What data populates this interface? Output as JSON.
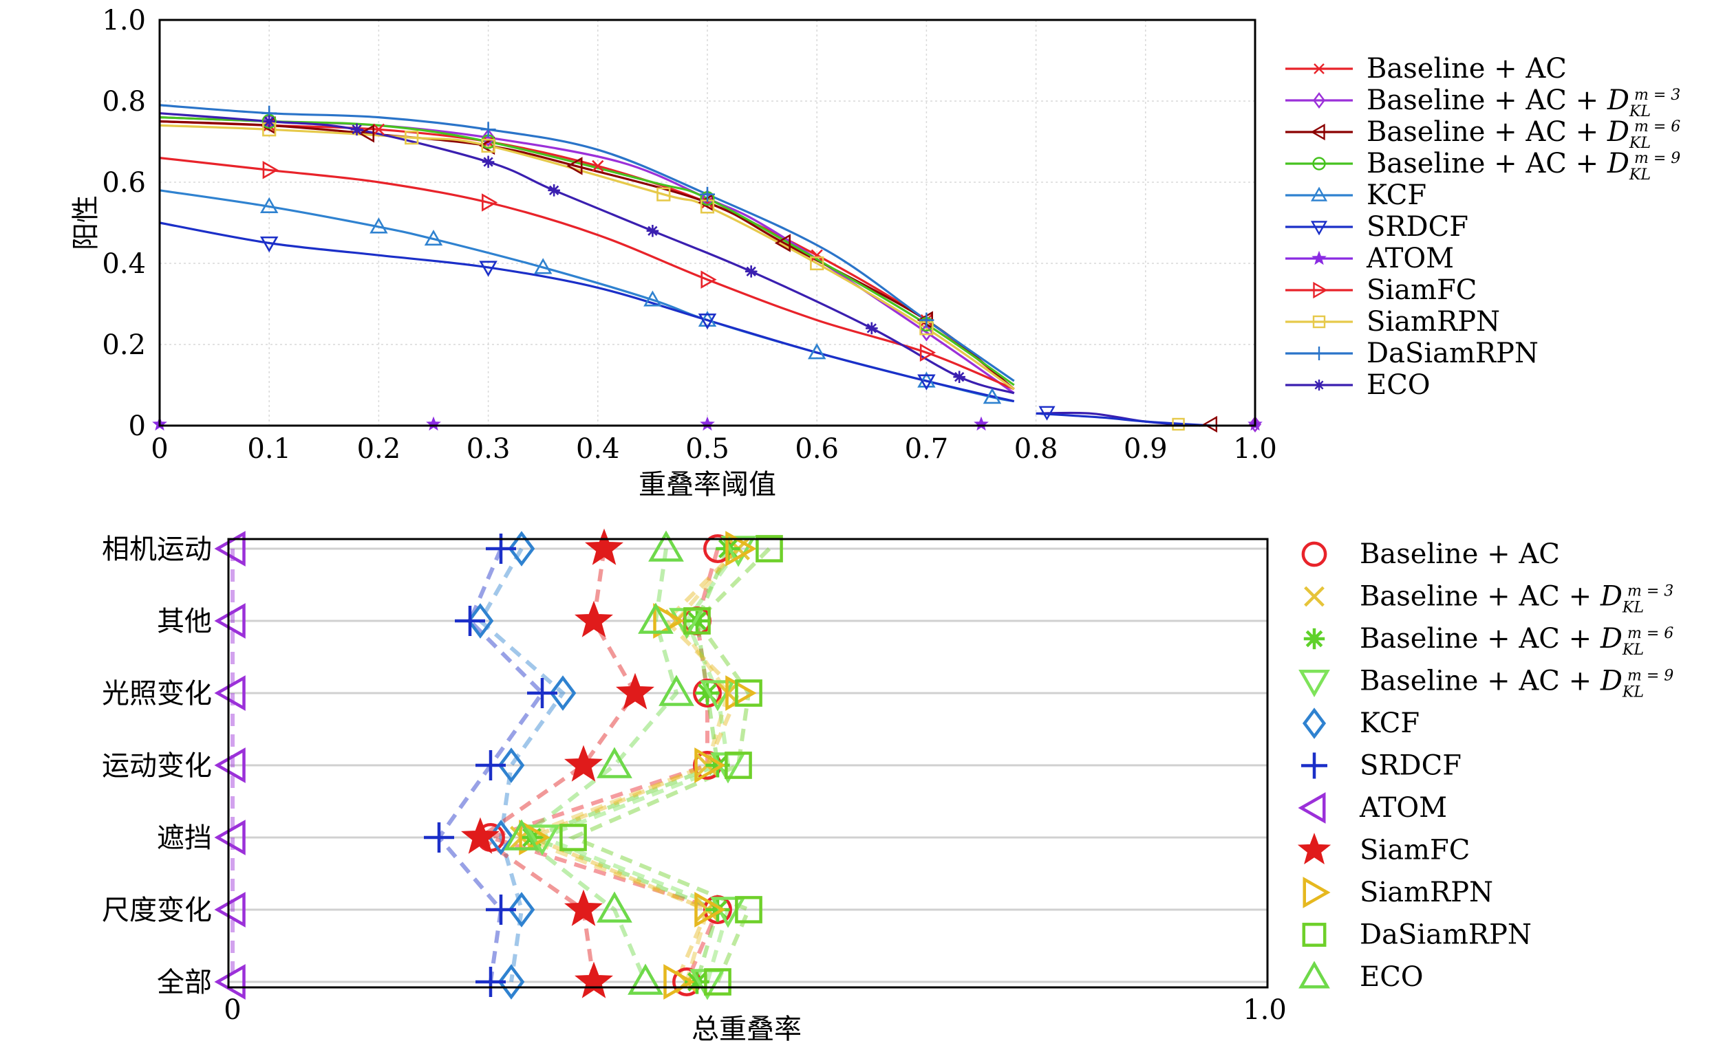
{
  "chart_data": [
    {
      "type": "line",
      "xlabel": "重叠率阈值",
      "ylabel": "阳性",
      "xlim": [
        0,
        1.0
      ],
      "ylim": [
        0,
        1.0
      ],
      "xticks": [
        "0",
        "0.1",
        "0.2",
        "0.3",
        "0.4",
        "0.5",
        "0.6",
        "0.7",
        "0.8",
        "0.9",
        "1.0"
      ],
      "yticks": [
        "0",
        "0.2",
        "0.4",
        "0.6",
        "0.8",
        "1.0"
      ],
      "grid": true,
      "legend_position": "right",
      "series": [
        {
          "name": "Baseline + AC",
          "sub": "",
          "color": "#e8232a",
          "marker": "x",
          "points": [
            [
              0,
              0.75
            ],
            [
              0.1,
              0.74
            ],
            [
              0.2,
              0.73
            ],
            [
              0.3,
              0.7
            ],
            [
              0.4,
              0.64
            ],
            [
              0.5,
              0.55
            ],
            [
              0.6,
              0.42
            ],
            [
              0.7,
              0.26
            ],
            [
              0.78,
              0.09
            ]
          ]
        },
        {
          "name": "Baseline + AC + ",
          "sub": "m = 3",
          "color": "#9b30d9",
          "marker": "diamond",
          "points": [
            [
              0,
              0.76
            ],
            [
              0.1,
              0.75
            ],
            [
              0.2,
              0.74
            ],
            [
              0.3,
              0.71
            ],
            [
              0.42,
              0.65
            ],
            [
              0.5,
              0.56
            ],
            [
              0.56,
              0.48
            ],
            [
              0.7,
              0.23
            ],
            [
              0.78,
              0.08
            ]
          ]
        },
        {
          "name": "Baseline + AC + ",
          "sub": "m = 6",
          "color": "#8b0000",
          "marker": "triangle-left",
          "points": [
            [
              0,
              0.75
            ],
            [
              0.1,
              0.74
            ],
            [
              0.19,
              0.72
            ],
            [
              0.3,
              0.69
            ],
            [
              0.38,
              0.64
            ],
            [
              0.5,
              0.55
            ],
            [
              0.57,
              0.45
            ],
            [
              0.7,
              0.26
            ],
            [
              0.78,
              0.09
            ]
          ]
        },
        {
          "name": "Baseline + AC + ",
          "sub": "m = 9",
          "color": "#46c21f",
          "marker": "circle",
          "points": [
            [
              0,
              0.76
            ],
            [
              0.1,
              0.75
            ],
            [
              0.2,
              0.74
            ],
            [
              0.3,
              0.7
            ],
            [
              0.45,
              0.6
            ],
            [
              0.5,
              0.56
            ],
            [
              0.6,
              0.41
            ],
            [
              0.7,
              0.25
            ],
            [
              0.78,
              0.1
            ]
          ]
        },
        {
          "name": "KCF",
          "sub": "",
          "color": "#2f82d0",
          "marker": "triangle-up",
          "points": [
            [
              0,
              0.58
            ],
            [
              0.1,
              0.54
            ],
            [
              0.2,
              0.49
            ],
            [
              0.25,
              0.46
            ],
            [
              0.35,
              0.39
            ],
            [
              0.45,
              0.31
            ],
            [
              0.5,
              0.26
            ],
            [
              0.6,
              0.18
            ],
            [
              0.7,
              0.11
            ],
            [
              0.76,
              0.07
            ],
            [
              0.78,
              0.06
            ]
          ]
        },
        {
          "name": "SRDCF",
          "sub": "",
          "color": "#1b2fc8",
          "marker": "triangle-down",
          "points": [
            [
              0,
              0.5
            ],
            [
              0.1,
              0.45
            ],
            [
              0.2,
              0.42
            ],
            [
              0.3,
              0.39
            ],
            [
              0.4,
              0.34
            ],
            [
              0.5,
              0.26
            ],
            [
              0.6,
              0.18
            ],
            [
              0.7,
              0.11
            ],
            [
              0.78,
              0.06
            ]
          ]
        },
        {
          "name": "ATOM",
          "sub": "",
          "color": "#8a2be2",
          "marker": "star",
          "points": []
        },
        {
          "name": "SiamFC",
          "sub": "",
          "color": "#e8232a",
          "marker": "triangle-right",
          "points": [
            [
              0,
              0.66
            ],
            [
              0.1,
              0.63
            ],
            [
              0.2,
              0.6
            ],
            [
              0.3,
              0.55
            ],
            [
              0.4,
              0.47
            ],
            [
              0.5,
              0.36
            ],
            [
              0.6,
              0.26
            ],
            [
              0.7,
              0.18
            ],
            [
              0.78,
              0.09
            ]
          ]
        },
        {
          "name": "SiamRPN",
          "sub": "",
          "color": "#e6c94a",
          "marker": "square",
          "points": [
            [
              0,
              0.74
            ],
            [
              0.1,
              0.73
            ],
            [
              0.23,
              0.71
            ],
            [
              0.3,
              0.69
            ],
            [
              0.46,
              0.57
            ],
            [
              0.5,
              0.54
            ],
            [
              0.6,
              0.4
            ],
            [
              0.7,
              0.24
            ],
            [
              0.78,
              0.09
            ]
          ]
        },
        {
          "name": "DaSiamRPN",
          "sub": "",
          "color": "#2a74c9",
          "marker": "plus",
          "points": [
            [
              0,
              0.79
            ],
            [
              0.1,
              0.77
            ],
            [
              0.2,
              0.76
            ],
            [
              0.3,
              0.73
            ],
            [
              0.4,
              0.68
            ],
            [
              0.5,
              0.57
            ],
            [
              0.61,
              0.43
            ],
            [
              0.7,
              0.26
            ],
            [
              0.78,
              0.11
            ]
          ]
        },
        {
          "name": "ECO",
          "sub": "",
          "color": "#3a1fb0",
          "marker": "asterisk",
          "points": [
            [
              0,
              0.77
            ],
            [
              0.1,
              0.75
            ],
            [
              0.18,
              0.73
            ],
            [
              0.3,
              0.65
            ],
            [
              0.36,
              0.58
            ],
            [
              0.45,
              0.48
            ],
            [
              0.54,
              0.38
            ],
            [
              0.65,
              0.24
            ],
            [
              0.73,
              0.12
            ],
            [
              0.78,
              0.08
            ]
          ]
        }
      ],
      "tail_markers": [
        {
          "series": 6,
          "points": [
            [
              0,
              0
            ],
            [
              0.25,
              0
            ],
            [
              0.5,
              0
            ],
            [
              0.75,
              0
            ],
            [
              1.0,
              0
            ]
          ]
        },
        {
          "series": 1,
          "points": [
            [
              1.0,
              0
            ]
          ]
        },
        {
          "series": 2,
          "points": [
            [
              0.96,
              0
            ]
          ]
        },
        {
          "series": 8,
          "points": [
            [
              0.93,
              0
            ]
          ]
        },
        {
          "series": 5,
          "points": [
            [
              0.81,
              0.03
            ]
          ]
        }
      ],
      "tail_lines": [
        {
          "color": "#3a1fb0",
          "points": [
            [
              0.8,
              0.03
            ],
            [
              0.85,
              0.03
            ],
            [
              0.9,
              0.01
            ],
            [
              0.95,
              0.0
            ]
          ]
        },
        {
          "color": "#1b2fc8",
          "points": [
            [
              0.8,
              0.03
            ],
            [
              0.86,
              0.02
            ],
            [
              0.9,
              0.01
            ],
            [
              0.96,
              0.0
            ]
          ]
        }
      ]
    },
    {
      "type": "scatter",
      "xlabel": "总重叠率",
      "xlim": [
        0,
        1.0
      ],
      "xticks": [
        "0",
        "1.0"
      ],
      "categories": [
        "相机运动",
        "其他",
        "光照变化",
        "运动变化",
        "遮挡",
        "尺度变化",
        "全部"
      ],
      "legend_position": "right",
      "series": [
        {
          "name": "Baseline + AC",
          "sub": "",
          "color": "#e8232a",
          "marker": "circle",
          "values": [
            0.47,
            0.45,
            0.46,
            0.46,
            0.25,
            0.47,
            0.44
          ]
        },
        {
          "name": "Baseline + AC + ",
          "sub": "m = 3",
          "color": "#e6c43a",
          "marker": "x",
          "values": [
            0.49,
            0.43,
            0.48,
            0.46,
            0.28,
            0.46,
            0.44
          ]
        },
        {
          "name": "Baseline + AC + ",
          "sub": "m = 6",
          "color": "#5fd12a",
          "marker": "asterisk",
          "values": [
            0.48,
            0.45,
            0.46,
            0.47,
            0.29,
            0.47,
            0.45
          ]
        },
        {
          "name": "Baseline + AC + ",
          "sub": "m = 9",
          "color": "#7ee35a",
          "marker": "triangle-down",
          "values": [
            0.49,
            0.44,
            0.47,
            0.48,
            0.3,
            0.48,
            0.46
          ]
        },
        {
          "name": "KCF",
          "sub": "",
          "color": "#2f82d0",
          "marker": "diamond",
          "values": [
            0.28,
            0.24,
            0.32,
            0.27,
            0.26,
            0.28,
            0.27
          ]
        },
        {
          "name": "SRDCF",
          "sub": "",
          "color": "#1b2fc8",
          "marker": "plus",
          "values": [
            0.26,
            0.23,
            0.3,
            0.25,
            0.2,
            0.26,
            0.25
          ]
        },
        {
          "name": "ATOM",
          "sub": "",
          "color": "#9b30d9",
          "marker": "triangle-left",
          "values": [
            0.0,
            0.0,
            0.0,
            0.0,
            0.0,
            0.0,
            0.0
          ]
        },
        {
          "name": "SiamFC",
          "sub": "",
          "color": "#e01b1b",
          "marker": "star",
          "values": [
            0.36,
            0.35,
            0.39,
            0.34,
            0.24,
            0.34,
            0.35
          ]
        },
        {
          "name": "SiamRPN",
          "sub": "",
          "color": "#e6b81f",
          "marker": "triangle-right",
          "values": [
            0.49,
            0.42,
            0.49,
            0.46,
            0.29,
            0.46,
            0.43
          ]
        },
        {
          "name": "DaSiamRPN",
          "sub": "",
          "color": "#6ed02a",
          "marker": "square",
          "values": [
            0.52,
            0.45,
            0.5,
            0.49,
            0.33,
            0.5,
            0.47
          ]
        },
        {
          "name": "ECO",
          "sub": "",
          "color": "#6ed94a",
          "marker": "triangle-up",
          "values": [
            0.42,
            0.41,
            0.43,
            0.37,
            0.28,
            0.37,
            0.4
          ]
        }
      ]
    }
  ]
}
